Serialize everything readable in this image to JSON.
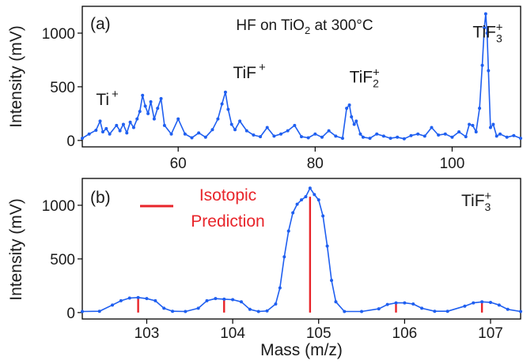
{
  "chart_data": [
    {
      "panel_label": "(a)",
      "type": "line",
      "title": "HF on TiO₂ at 300°C",
      "xlabel": "",
      "ylabel": "Intensity (mV)",
      "xlim": [
        46,
        110
      ],
      "ylim": [
        -60,
        1250
      ],
      "xticks": [
        60,
        80,
        100
      ],
      "yticks": [
        0,
        500,
        1000
      ],
      "grid": false,
      "series": [
        {
          "color": "#1f5ff0",
          "x": [
            46,
            47,
            48,
            48.6,
            49,
            49.5,
            50,
            51,
            51.5,
            52,
            52.5,
            53,
            53.5,
            54,
            54.4,
            54.8,
            55.2,
            55.6,
            56,
            56.5,
            57,
            57.5,
            58,
            59,
            60,
            61,
            62,
            63,
            64,
            65,
            65.8,
            66.4,
            66.9,
            67.3,
            67.8,
            68.3,
            69,
            70,
            71,
            72,
            73,
            74,
            75,
            76,
            77,
            78,
            79,
            80,
            81,
            82,
            83,
            84,
            84.6,
            85,
            85.3,
            85.7,
            86,
            86.6,
            87,
            88,
            89,
            90,
            91,
            92,
            93,
            94,
            95,
            96,
            97,
            98,
            99,
            100,
            101,
            102,
            102.5,
            103,
            103.5,
            104,
            104.4,
            104.7,
            104.9,
            105.1,
            105.3,
            105.6,
            106,
            106.5,
            107,
            108,
            109,
            110
          ],
          "y": [
            20,
            60,
            95,
            180,
            80,
            110,
            60,
            140,
            90,
            150,
            70,
            170,
            120,
            200,
            270,
            420,
            320,
            250,
            360,
            200,
            300,
            390,
            140,
            60,
            200,
            60,
            25,
            70,
            30,
            100,
            200,
            340,
            450,
            290,
            150,
            100,
            180,
            90,
            50,
            35,
            120,
            40,
            60,
            90,
            140,
            35,
            25,
            60,
            30,
            90,
            40,
            20,
            300,
            330,
            220,
            150,
            180,
            60,
            30,
            20,
            60,
            40,
            20,
            30,
            15,
            45,
            60,
            40,
            120,
            50,
            60,
            30,
            80,
            35,
            150,
            140,
            80,
            300,
            700,
            1050,
            1180,
            1000,
            650,
            120,
            150,
            40,
            60,
            30,
            45,
            20
          ]
        }
      ],
      "annotations": [
        {
          "text": "Ti",
          "superscript": "+",
          "x": 48,
          "y": 330
        },
        {
          "text": "TiF",
          "superscript": "+",
          "x": 68,
          "y": 580
        },
        {
          "text": "TiF",
          "subscript": "2",
          "superscript": "+",
          "x": 85,
          "y": 540
        },
        {
          "text": "TiF",
          "subscript": "3",
          "superscript": "+",
          "x": 103,
          "y": 960
        }
      ]
    },
    {
      "panel_label": "(b)",
      "type": "line",
      "xlabel": "Mass (m/z)",
      "ylabel": "Intensity (mV)",
      "xlim": [
        102.25,
        107.35
      ],
      "ylim": [
        -60,
        1250
      ],
      "xticks": [
        103,
        104,
        105,
        106,
        107
      ],
      "yticks": [
        0,
        500,
        1000
      ],
      "grid": false,
      "legend": {
        "label": "Isotopic Prediction",
        "placement": "top-left"
      },
      "species_label": {
        "text": "TiF",
        "subscript": "3",
        "superscript": "+"
      },
      "series": [
        {
          "color": "#1f5ff0",
          "x": [
            102.25,
            102.45,
            102.6,
            102.7,
            102.8,
            102.9,
            103.0,
            103.1,
            103.2,
            103.3,
            103.45,
            103.6,
            103.7,
            103.8,
            103.9,
            104.0,
            104.1,
            104.2,
            104.3,
            104.4,
            104.5,
            104.55,
            104.6,
            104.65,
            104.7,
            104.75,
            104.8,
            104.85,
            104.9,
            104.95,
            105.0,
            105.05,
            105.1,
            105.15,
            105.2,
            105.3,
            105.5,
            105.7,
            105.8,
            105.9,
            106.0,
            106.1,
            106.2,
            106.35,
            106.5,
            106.7,
            106.8,
            106.9,
            107.0,
            107.1,
            107.2,
            107.35
          ],
          "y": [
            10,
            12,
            70,
            110,
            135,
            140,
            130,
            110,
            40,
            12,
            10,
            40,
            110,
            130,
            125,
            120,
            100,
            30,
            10,
            15,
            80,
            230,
            520,
            760,
            930,
            1010,
            1050,
            1080,
            1160,
            1100,
            1050,
            900,
            620,
            300,
            100,
            10,
            10,
            35,
            75,
            90,
            90,
            80,
            40,
            12,
            12,
            60,
            90,
            100,
            95,
            70,
            30,
            10
          ]
        }
      ],
      "isotopic_prediction": {
        "color": "#e8242a",
        "x": [
          102.9,
          103.9,
          104.9,
          105.9,
          106.9
        ],
        "y": [
          130,
          135,
          1080,
          80,
          100
        ]
      }
    }
  ]
}
